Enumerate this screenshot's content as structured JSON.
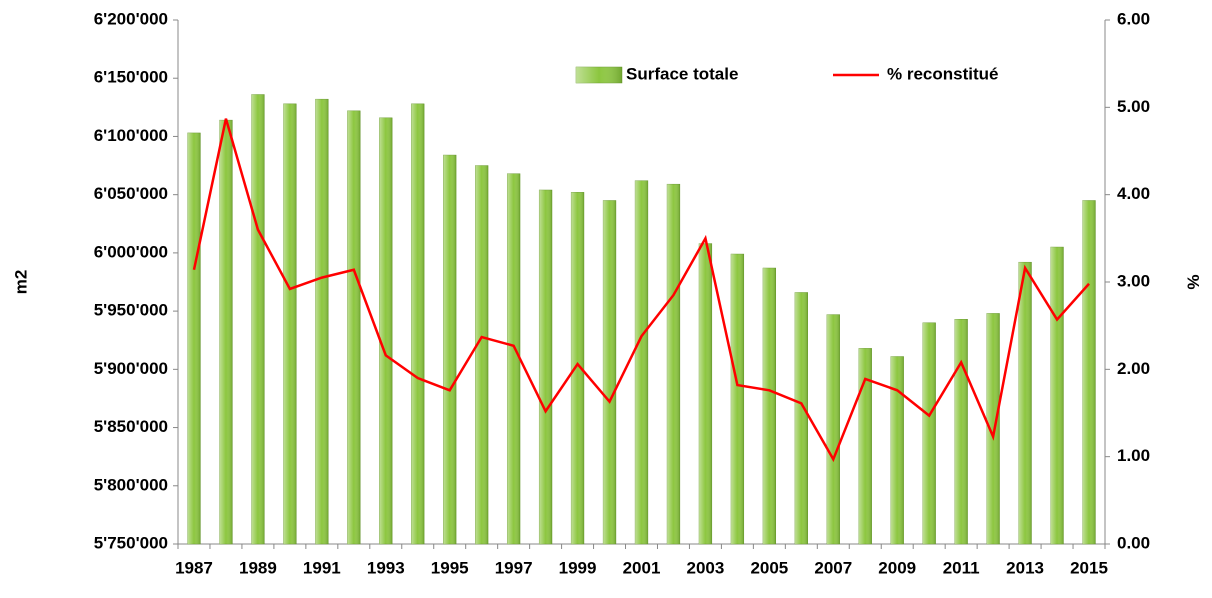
{
  "chart_data": {
    "type": "bar-line",
    "categories": [
      "1987",
      null,
      "1989",
      null,
      "1991",
      null,
      "1993",
      null,
      "1995",
      null,
      "1997",
      null,
      "1999",
      null,
      "2001",
      null,
      "2003",
      null,
      "2005",
      null,
      "2007",
      null,
      "2009",
      null,
      "2011",
      null,
      "2013",
      null,
      "2015"
    ],
    "series": [
      {
        "name": "Surface totale",
        "type": "bar",
        "color": "#8cc63f",
        "values": [
          6103000,
          6114000,
          6136000,
          6128000,
          6132000,
          6122000,
          6116000,
          6128000,
          6084000,
          6075000,
          6068000,
          6054000,
          6052000,
          6045000,
          6062000,
          6059000,
          6008000,
          5999000,
          5987000,
          5966000,
          5947000,
          5918000,
          5911000,
          5940000,
          5943000,
          5948000,
          5992000,
          6005000,
          6045000
        ]
      },
      {
        "name": "% reconstitué",
        "type": "line",
        "axis": "y2",
        "color": "#ff0000",
        "values": [
          3.14,
          4.87,
          3.6,
          2.92,
          3.05,
          3.14,
          2.16,
          1.9,
          1.76,
          2.37,
          2.27,
          1.52,
          2.06,
          1.63,
          2.38,
          2.85,
          3.5,
          1.82,
          1.76,
          1.61,
          0.97,
          1.89,
          1.76,
          1.47,
          2.08,
          1.23,
          3.16,
          2.57,
          2.98
        ]
      }
    ],
    "ylabel": "m2",
    "y2label": "%",
    "ylim": [
      5750000,
      6200000
    ],
    "yticks": [
      {
        "value": 5750000,
        "label": "5'750'000"
      },
      {
        "value": 5800000,
        "label": "5'800'000"
      },
      {
        "value": 5850000,
        "label": "5'850'000"
      },
      {
        "value": 5900000,
        "label": "5'900'000"
      },
      {
        "value": 5950000,
        "label": "5'950'000"
      },
      {
        "value": 6000000,
        "label": "6'000'000"
      },
      {
        "value": 6050000,
        "label": "6'050'000"
      },
      {
        "value": 6100000,
        "label": "6'100'000"
      },
      {
        "value": 6150000,
        "label": "6'150'000"
      },
      {
        "value": 6200000,
        "label": "6'200'000"
      }
    ],
    "y2lim": [
      0,
      6
    ],
    "y2ticks": [
      {
        "value": 0,
        "label": "0.00"
      },
      {
        "value": 1,
        "label": "1.00"
      },
      {
        "value": 2,
        "label": "2.00"
      },
      {
        "value": 3,
        "label": "3.00"
      },
      {
        "value": 4,
        "label": "4.00"
      },
      {
        "value": 5,
        "label": "5.00"
      },
      {
        "value": 6,
        "label": "6.00"
      }
    ],
    "grid": false,
    "legend": "upper center"
  }
}
